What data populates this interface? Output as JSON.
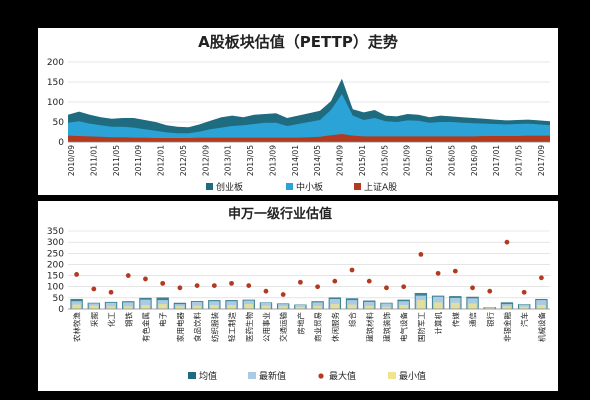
{
  "chart_data": [
    {
      "type": "area",
      "title": "A股板块估值（PETTP）走势",
      "ylim": [
        0,
        200
      ],
      "y_ticks": [
        0,
        50,
        100,
        150,
        200
      ],
      "x_tick_labels": [
        "2010/09",
        "2011/01",
        "2011/05",
        "2011/09",
        "2012/01",
        "2012/05",
        "2012/09",
        "2013/01",
        "2013/05",
        "2013/09",
        "2014/01",
        "2014/05",
        "2014/09",
        "2015/01",
        "2015/05",
        "2015/09",
        "2016/01",
        "2016/05",
        "2016/09",
        "2017/01",
        "2017/05",
        "2017/09"
      ],
      "legend_position": "bottom",
      "series": [
        {
          "name": "创业板",
          "color": "#1f6b80",
          "values": [
            68,
            76,
            68,
            62,
            58,
            60,
            60,
            55,
            50,
            42,
            38,
            37,
            44,
            53,
            62,
            66,
            62,
            68,
            70,
            72,
            60,
            66,
            72,
            78,
            102,
            158,
            82,
            74,
            80,
            66,
            64,
            70,
            68,
            62,
            66,
            64,
            62,
            60,
            58,
            56,
            54,
            55,
            56,
            54,
            52
          ]
        },
        {
          "name": "中小板",
          "color": "#2ba3d6",
          "values": [
            48,
            52,
            46,
            42,
            38,
            38,
            36,
            32,
            28,
            24,
            22,
            22,
            26,
            32,
            36,
            40,
            42,
            45,
            48,
            48,
            40,
            45,
            50,
            55,
            80,
            120,
            66,
            55,
            60,
            52,
            50,
            54,
            53,
            48,
            50,
            50,
            48,
            47,
            46,
            45,
            44,
            45,
            46,
            44,
            42
          ]
        },
        {
          "name": "上证A股",
          "color": "#b23a1f",
          "values": [
            16,
            15,
            14,
            13,
            12,
            12,
            11,
            11,
            10,
            10,
            10,
            10,
            11,
            11,
            11,
            11,
            11,
            11,
            11,
            11,
            11,
            11,
            12,
            13,
            17,
            20,
            16,
            14,
            14,
            14,
            14,
            14,
            14,
            14,
            14,
            14,
            14,
            14,
            15,
            15,
            15,
            15,
            16,
            16,
            16
          ]
        }
      ]
    },
    {
      "type": "bar",
      "title": "申万一级行业估值",
      "ylim": [
        0,
        350
      ],
      "y_ticks": [
        0,
        50,
        100,
        150,
        200,
        250,
        300,
        350
      ],
      "legend_position": "bottom",
      "categories": [
        "农林牧渔",
        "采掘",
        "化工",
        "钢铁",
        "有色金属",
        "电子",
        "家用电器",
        "食品饮料",
        "纺织服装",
        "轻工制造",
        "医药生物",
        "公用事业",
        "交通运输",
        "房地产",
        "商业贸易",
        "休闲服务",
        "综合",
        "建筑材料",
        "建筑装饰",
        "电气设备",
        "国防军工",
        "计算机",
        "传媒",
        "通信",
        "银行",
        "非银金融",
        "汽车",
        "机械设备"
      ],
      "series": [
        {
          "name": "均值",
          "color": "#1f6b80",
          "values": [
            45,
            28,
            32,
            35,
            50,
            52,
            28,
            36,
            40,
            40,
            42,
            30,
            25,
            20,
            35,
            52,
            48,
            38,
            28,
            42,
            72,
            60,
            58,
            55,
            8,
            30,
            22,
            45
          ]
        },
        {
          "name": "最新值",
          "color": "#a9cbe3",
          "values": [
            35,
            25,
            28,
            30,
            42,
            40,
            22,
            32,
            35,
            35,
            38,
            28,
            22,
            18,
            30,
            45,
            40,
            32,
            25,
            35,
            60,
            55,
            50,
            48,
            7,
            22,
            20,
            40
          ]
        },
        {
          "name": "最大值",
          "color": "#b23a1f",
          "values": [
            155,
            90,
            75,
            150,
            135,
            115,
            95,
            105,
            105,
            115,
            105,
            80,
            65,
            120,
            100,
            125,
            175,
            125,
            95,
            100,
            245,
            160,
            170,
            95,
            80,
            300,
            75,
            140
          ]
        },
        {
          "name": "最小值",
          "color": "#f0e48c",
          "values": [
            20,
            15,
            12,
            12,
            18,
            22,
            12,
            15,
            18,
            18,
            22,
            15,
            12,
            10,
            14,
            22,
            20,
            14,
            10,
            18,
            40,
            30,
            28,
            25,
            4,
            12,
            10,
            18
          ]
        }
      ]
    }
  ]
}
